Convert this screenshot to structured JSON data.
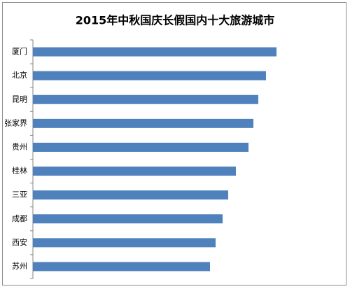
{
  "chart_data": {
    "type": "bar",
    "orientation": "horizontal",
    "title": "2015年中秋国庆长假国内十大旅游城市",
    "categories": [
      "厦门",
      "北京",
      "昆明",
      "张家界",
      "贵州",
      "桂林",
      "三亚",
      "成都",
      "西安",
      "苏州"
    ],
    "values": [
      348,
      333,
      322,
      315,
      308,
      290,
      279,
      271,
      261,
      253
    ],
    "color": "#4f81bd",
    "xlim": [
      0,
      433
    ]
  }
}
